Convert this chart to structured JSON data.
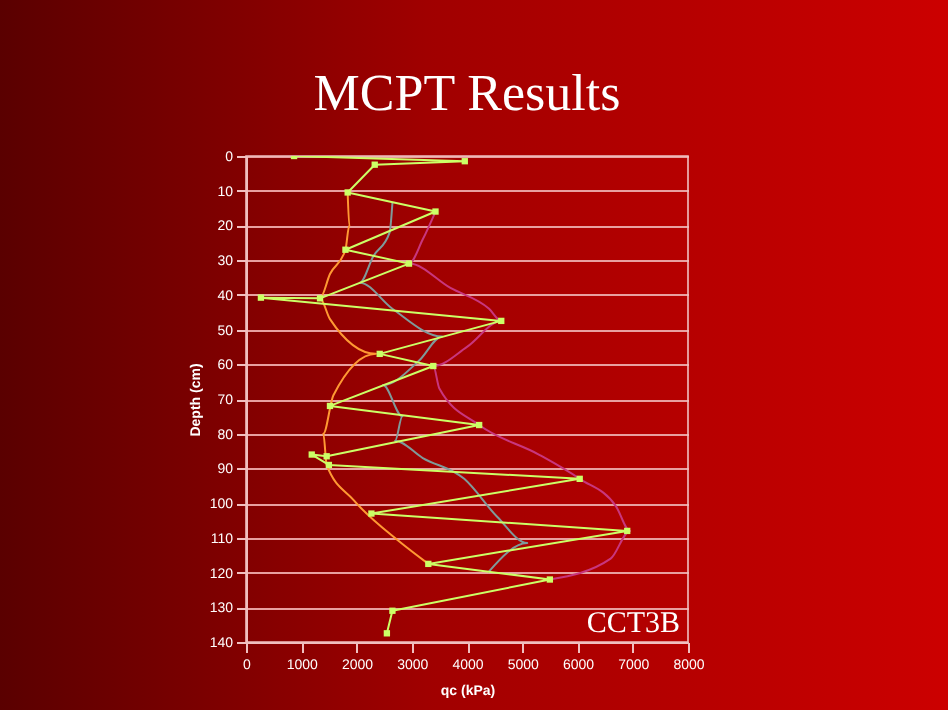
{
  "chart_data": {
    "type": "line",
    "title": "MCPT Results",
    "xlabel": "qc (kPa)",
    "ylabel": "Depth (cm)",
    "annotations": [
      "CCT3B"
    ],
    "xlim": [
      0,
      8000
    ],
    "xticks": [
      0,
      1000,
      2000,
      3000,
      4000,
      5000,
      6000,
      7000,
      8000
    ],
    "ylim": [
      140,
      0
    ],
    "yticks": [
      0,
      10,
      20,
      30,
      40,
      50,
      60,
      70,
      80,
      90,
      100,
      110,
      120,
      130,
      140
    ],
    "grid": "y",
    "series": [
      {
        "color": "#c8367e",
        "marker": "none",
        "x": [
          3430,
          3200,
          2950,
          3700,
          4400,
          4620,
          4000,
          3390,
          3500,
          4220,
          5300,
          6040,
          6700,
          6950,
          6600,
          5500
        ],
        "values": [
          16,
          24,
          31,
          38,
          44,
          47.5,
          55,
          60.5,
          67,
          77.5,
          86,
          93,
          101,
          108,
          116,
          122
        ]
      },
      {
        "color": "#7f9a9a",
        "marker": "none",
        "x": [
          2650,
          2600,
          2300,
          2060,
          2650,
          3550,
          3130,
          2480,
          2830,
          2700,
          3200,
          3950,
          4550,
          5090,
          4380
        ],
        "values": [
          13.5,
          22,
          29,
          36.5,
          44,
          52,
          59,
          66,
          75,
          82,
          87,
          93,
          104,
          111.5,
          120
        ]
      },
      {
        "color": "#ff9933",
        "marker": "none",
        "x": [
          1840,
          1870,
          1800,
          1520,
          1340,
          1520,
          2350,
          1580,
          1400,
          1460,
          1940,
          2770,
          3300
        ],
        "values": [
          10.5,
          20,
          27,
          34,
          41,
          47,
          57,
          69,
          80,
          89,
          99,
          111,
          117.5
        ]
      },
      {
        "color": "#ccff66",
        "marker": "square",
        "x": [
          870,
          3960,
          2330,
          1840,
          3430,
          1800,
          2950,
          1340,
          270,
          4620,
          2420,
          3390,
          1520,
          4220,
          1460,
          1190,
          1500,
          6040,
          2270,
          6900,
          3300,
          5500,
          2650,
          2550
        ],
        "values": [
          0,
          1.5,
          2.5,
          10.5,
          16,
          27,
          31,
          41,
          40.8,
          47.5,
          57,
          60.5,
          72,
          77.5,
          86.5,
          86,
          89,
          93,
          103,
          108,
          117.5,
          122,
          131,
          137.5
        ]
      }
    ]
  }
}
